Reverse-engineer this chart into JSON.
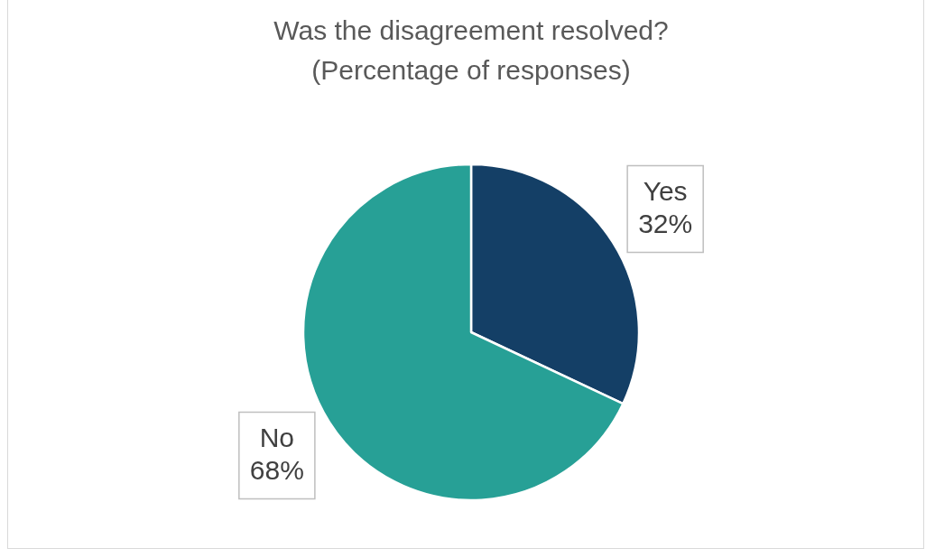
{
  "chart_data": {
    "type": "pie",
    "title": "Was the disagreement resolved?",
    "subtitle": "(Percentage of responses)",
    "categories": [
      "Yes",
      "No"
    ],
    "values": [
      32,
      68
    ],
    "value_labels": [
      "32%",
      "68%"
    ],
    "colors": [
      "#143f66",
      "#27a096"
    ],
    "legend": false
  }
}
